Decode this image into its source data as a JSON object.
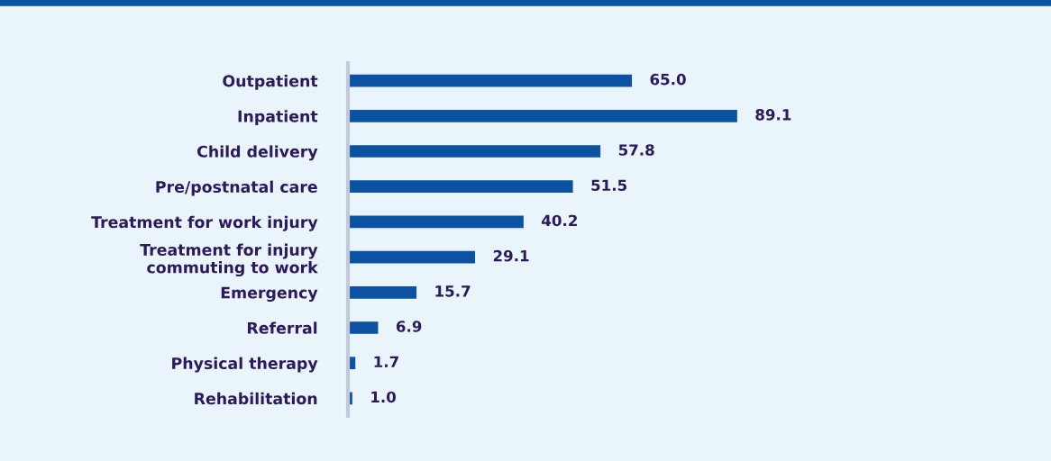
{
  "chart_data": {
    "type": "bar",
    "orientation": "horizontal",
    "categories": [
      "Outpatient",
      "Inpatient",
      "Child delivery",
      "Pre/postnatal care",
      "Treatment for work injury",
      "Treatment for injury\ncommuting to work",
      "Emergency",
      "Referral",
      "Physical therapy",
      "Rehabilitation"
    ],
    "values": [
      65.0,
      89.1,
      57.8,
      51.5,
      40.2,
      29.1,
      15.7,
      6.9,
      1.7,
      1.0
    ],
    "value_labels": [
      "65.0",
      "89.1",
      "57.8",
      "51.5",
      "40.2",
      "29.1",
      "15.7",
      "6.9",
      "1.7",
      "1.0"
    ],
    "color": "#0b52a3",
    "grid": false,
    "legend": false
  }
}
